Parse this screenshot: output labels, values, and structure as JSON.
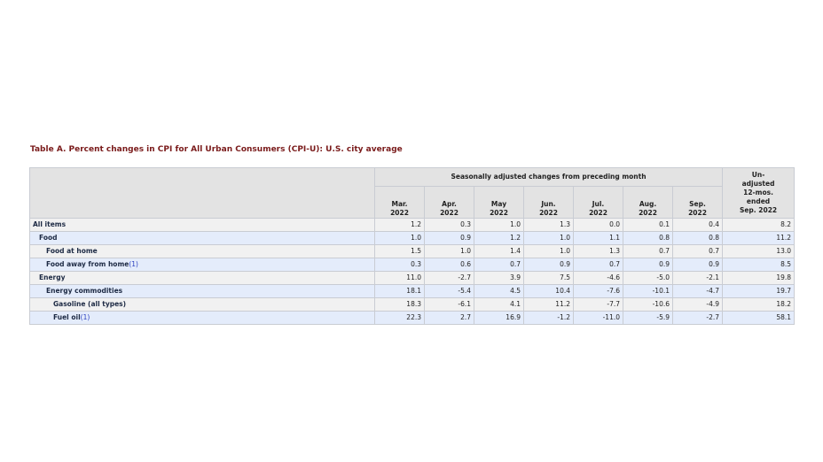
{
  "title": "Table A. Percent changes in CPI for All Urban Consumers (CPI-U): U.S. city average",
  "header": {
    "group_label": "Seasonally adjusted changes from preceding month",
    "months": [
      {
        "month": "Mar.",
        "year": "2022"
      },
      {
        "month": "Apr.",
        "year": "2022"
      },
      {
        "month": "May",
        "year": "2022"
      },
      {
        "month": "Jun.",
        "year": "2022"
      },
      {
        "month": "Jul.",
        "year": "2022"
      },
      {
        "month": "Aug.",
        "year": "2022"
      },
      {
        "month": "Sep.",
        "year": "2022"
      }
    ],
    "unadjusted_lines": [
      "Un-",
      "adjusted",
      "12-mos.",
      "ended",
      "Sep. 2022"
    ]
  },
  "rows": [
    {
      "label": "All items",
      "footnote": "",
      "indent": 0,
      "shade": "gray",
      "values": [
        "1.2",
        "0.3",
        "1.0",
        "1.3",
        "0.0",
        "0.1",
        "0.4"
      ],
      "unadjusted": "8.2"
    },
    {
      "label": "Food",
      "footnote": "",
      "indent": 1,
      "shade": "blue",
      "values": [
        "1.0",
        "0.9",
        "1.2",
        "1.0",
        "1.1",
        "0.8",
        "0.8"
      ],
      "unadjusted": "11.2"
    },
    {
      "label": "Food at home",
      "footnote": "",
      "indent": 2,
      "shade": "gray",
      "values": [
        "1.5",
        "1.0",
        "1.4",
        "1.0",
        "1.3",
        "0.7",
        "0.7"
      ],
      "unadjusted": "13.0"
    },
    {
      "label": "Food away from home",
      "footnote": "(1)",
      "indent": 2,
      "shade": "blue",
      "values": [
        "0.3",
        "0.6",
        "0.7",
        "0.9",
        "0.7",
        "0.9",
        "0.9"
      ],
      "unadjusted": "8.5"
    },
    {
      "label": "Energy",
      "footnote": "",
      "indent": 1,
      "shade": "gray",
      "values": [
        "11.0",
        "-2.7",
        "3.9",
        "7.5",
        "-4.6",
        "-5.0",
        "-2.1"
      ],
      "unadjusted": "19.8"
    },
    {
      "label": "Energy commodities",
      "footnote": "",
      "indent": 2,
      "shade": "blue",
      "values": [
        "18.1",
        "-5.4",
        "4.5",
        "10.4",
        "-7.6",
        "-10.1",
        "-4.7"
      ],
      "unadjusted": "19.7"
    },
    {
      "label": "Gasoline (all types)",
      "footnote": "",
      "indent": 3,
      "shade": "gray",
      "values": [
        "18.3",
        "-6.1",
        "4.1",
        "11.2",
        "-7.7",
        "-10.6",
        "-4.9"
      ],
      "unadjusted": "18.2"
    },
    {
      "label": "Fuel oil",
      "footnote": "(1)",
      "indent": 3,
      "shade": "blue",
      "values": [
        "22.3",
        "2.7",
        "16.9",
        "-1.2",
        "-11.0",
        "-5.9",
        "-2.7"
      ],
      "unadjusted": "58.1"
    }
  ]
}
